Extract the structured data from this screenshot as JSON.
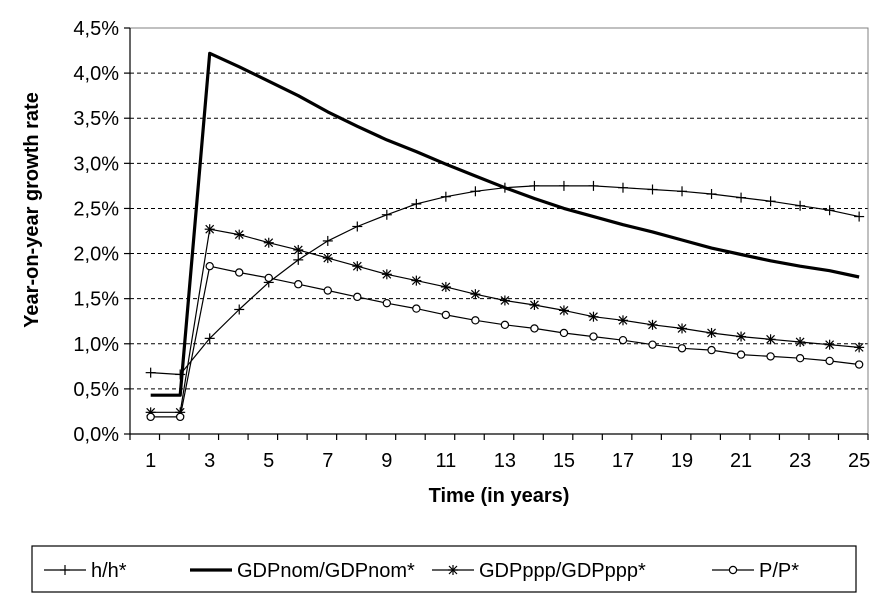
{
  "chart_data": {
    "type": "line",
    "xlabel": "Time (in years)",
    "ylabel": "Year-on-year growth rate",
    "x": [
      1,
      2,
      3,
      4,
      5,
      6,
      7,
      8,
      9,
      10,
      11,
      12,
      13,
      14,
      15,
      16,
      17,
      18,
      19,
      20,
      21,
      22,
      23,
      24,
      25
    ],
    "xticks": [
      1,
      3,
      5,
      7,
      9,
      11,
      13,
      15,
      17,
      19,
      21,
      23,
      25
    ],
    "xtick_labels": [
      "1",
      "3",
      "5",
      "7",
      "9",
      "11",
      "13",
      "15",
      "17",
      "19",
      "21",
      "23",
      "25"
    ],
    "xlim": [
      0.3,
      25.3
    ],
    "ylim": [
      0,
      4.5
    ],
    "yticks": [
      0,
      0.5,
      1,
      1.5,
      2,
      2.5,
      3,
      3.5,
      4,
      4.5
    ],
    "ytick_labels": [
      "0,0%",
      "0,5%",
      "1,0%",
      "1,5%",
      "2,0%",
      "2,5%",
      "3,0%",
      "3,5%",
      "4,0%",
      "4,5%"
    ],
    "grid": "horizontal dashed",
    "legend_position": "bottom",
    "series": [
      {
        "name": "h/h*",
        "marker": "plus",
        "color": "#000000",
        "values": [
          0.68,
          0.66,
          1.06,
          1.38,
          1.68,
          1.93,
          2.14,
          2.3,
          2.43,
          2.55,
          2.63,
          2.69,
          2.73,
          2.75,
          2.75,
          2.75,
          2.73,
          2.71,
          2.69,
          2.66,
          2.62,
          2.58,
          2.53,
          2.48,
          2.41
        ]
      },
      {
        "name": "GDPnom/GDPnom*",
        "marker": "none",
        "color": "#000000",
        "values": [
          0.43,
          0.43,
          4.22,
          4.07,
          3.91,
          3.75,
          3.57,
          3.41,
          3.26,
          3.13,
          2.99,
          2.86,
          2.73,
          2.61,
          2.5,
          2.41,
          2.32,
          2.24,
          2.15,
          2.06,
          1.99,
          1.92,
          1.86,
          1.81,
          1.74
        ]
      },
      {
        "name": "GDPppp/GDPppp*",
        "marker": "asterisk",
        "color": "#000000",
        "values": [
          0.24,
          0.24,
          2.27,
          2.21,
          2.12,
          2.04,
          1.95,
          1.86,
          1.77,
          1.7,
          1.63,
          1.55,
          1.48,
          1.43,
          1.37,
          1.3,
          1.26,
          1.21,
          1.17,
          1.12,
          1.08,
          1.05,
          1.02,
          0.99,
          0.96
        ]
      },
      {
        "name": "P/P*",
        "marker": "circle",
        "color": "#000000",
        "values": [
          0.19,
          0.19,
          1.86,
          1.79,
          1.73,
          1.66,
          1.59,
          1.52,
          1.45,
          1.39,
          1.32,
          1.26,
          1.21,
          1.17,
          1.12,
          1.08,
          1.04,
          0.99,
          0.95,
          0.93,
          0.88,
          0.86,
          0.84,
          0.81,
          0.77
        ]
      }
    ]
  }
}
